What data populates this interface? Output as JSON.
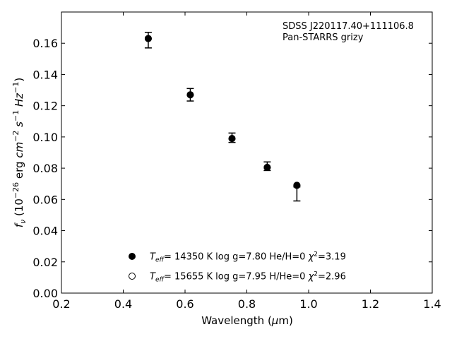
{
  "chart_data": {
    "type": "scatter",
    "annotation": [
      "SDSS J220117.40+111106.8",
      "Pan-STARRS grizy"
    ],
    "xlabel": "Wavelength (μm)",
    "ylabel": "f_ν (10^−26 erg cm^−2 s^−1 Hz^−1)",
    "xlim": [
      0.2,
      1.4
    ],
    "ylim": [
      0.0,
      0.18
    ],
    "xticks": [
      "0.2",
      "0.4",
      "0.6",
      "0.8",
      "1.0",
      "1.2",
      "1.4"
    ],
    "yticks": [
      "0.00",
      "0.02",
      "0.04",
      "0.06",
      "0.08",
      "0.10",
      "0.12",
      "0.14",
      "0.16"
    ],
    "grid": false,
    "legend_position": "lower-center",
    "observed": {
      "x": [
        0.481,
        0.617,
        0.752,
        0.866,
        0.962
      ],
      "y": [
        0.162,
        0.127,
        0.099,
        0.081,
        0.066
      ],
      "yerr_low": [
        0.005,
        0.004,
        0.0025,
        0.0025,
        0.007
      ],
      "yerr_high": [
        0.005,
        0.004,
        0.0035,
        0.003,
        0.002
      ]
    },
    "series": [
      {
        "name": "Teff= 14350 K  log g=7.80  He/H=0  χ²=3.19",
        "marker": "filled-circle",
        "color": "#000000",
        "x": [
          0.481,
          0.617,
          0.752,
          0.866,
          0.962
        ],
        "y": [
          0.163,
          0.127,
          0.099,
          0.0805,
          0.069
        ]
      },
      {
        "name": "Teff= 15655 K  log g=7.95  H/He=0  χ²=2.96",
        "marker": "open-circle",
        "color": "#000000",
        "x": [
          0.481,
          0.617,
          0.752,
          0.866,
          0.962
        ],
        "y": [
          0.163,
          0.127,
          0.099,
          0.0805,
          0.069
        ]
      }
    ]
  }
}
